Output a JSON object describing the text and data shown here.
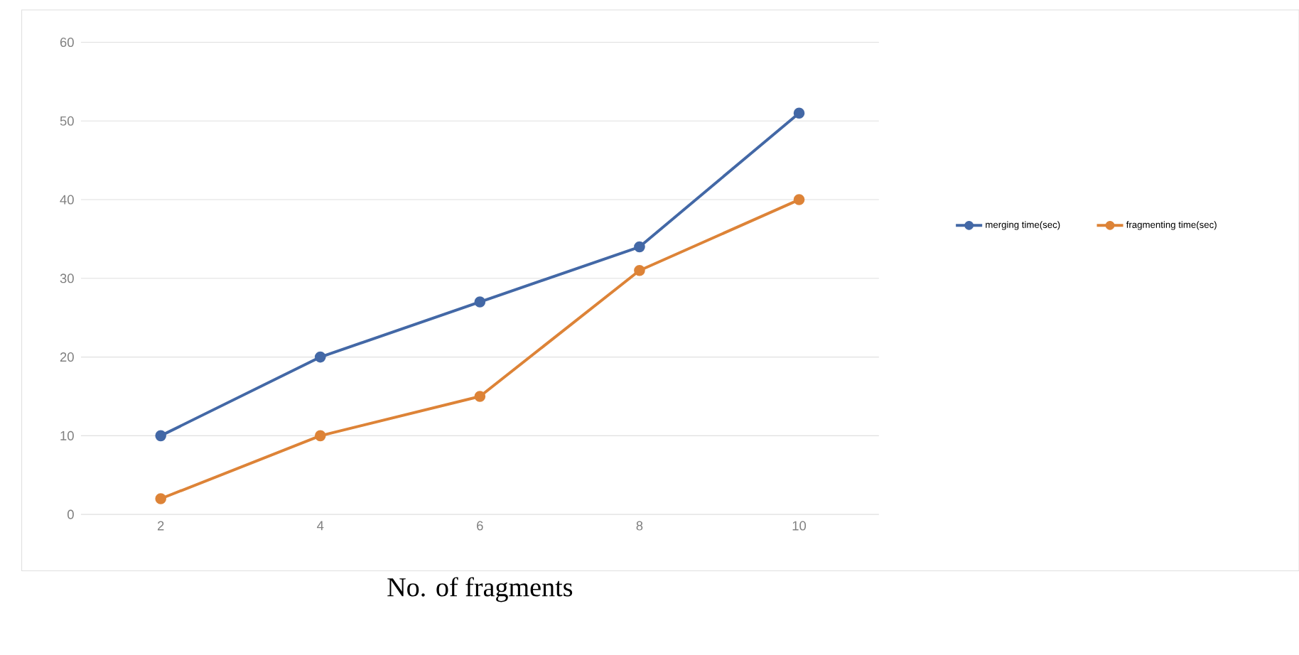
{
  "chart_data": {
    "type": "line",
    "xlabel": "No. of fragments",
    "categories": [
      "2",
      "4",
      "6",
      "8",
      "10"
    ],
    "series": [
      {
        "name": "merging time(sec)",
        "color": "#4368a6",
        "values": [
          10,
          20,
          27,
          34,
          51
        ]
      },
      {
        "name": "fragmenting time(sec)",
        "color": "#dd8337",
        "values": [
          2,
          10,
          15,
          31,
          40
        ]
      }
    ],
    "ylim": [
      0,
      60
    ],
    "yticks": [
      0,
      10,
      20,
      30,
      40,
      50,
      60
    ],
    "grid": "y",
    "legend": "right",
    "marker": "circle",
    "line_style": "solid"
  }
}
